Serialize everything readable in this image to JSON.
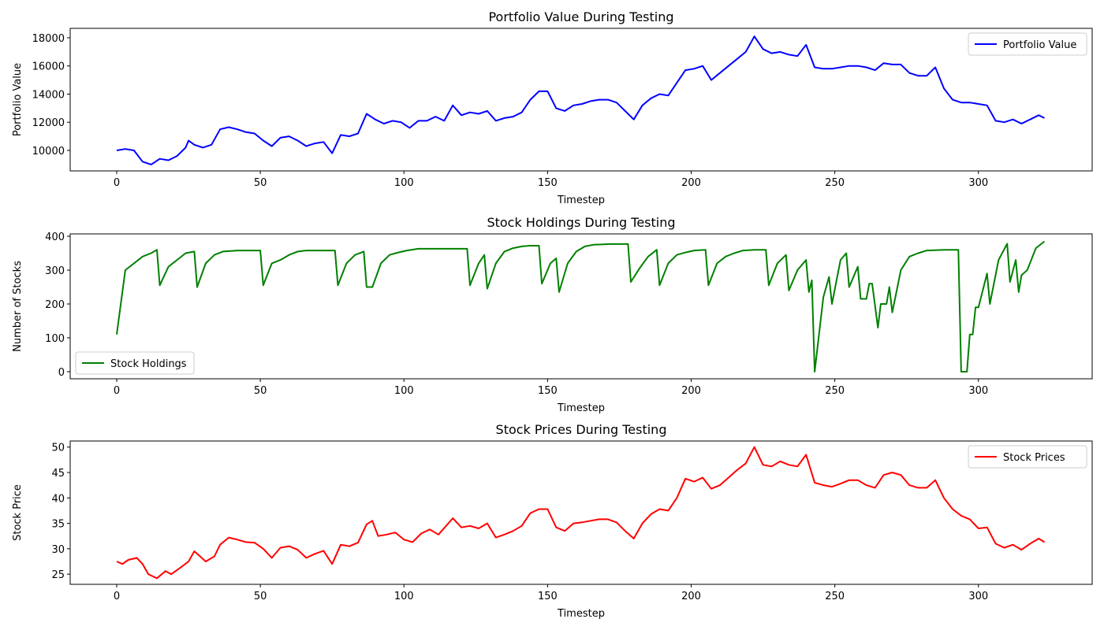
{
  "chart_data": [
    {
      "type": "line",
      "title": "Portfolio Value During Testing",
      "x_label": "Timestep",
      "y_label": "Portfolio Value",
      "xlim": [
        -16.2,
        339.6
      ],
      "xticks": [
        0,
        50,
        100,
        150,
        200,
        250,
        300
      ],
      "ylim": [
        8545,
        18670
      ],
      "yticks": [
        10000,
        12000,
        14000,
        16000,
        18000
      ],
      "legend": "upper right",
      "x": [
        0,
        3,
        6,
        9,
        12,
        15,
        18,
        21,
        24,
        25,
        27,
        30,
        33,
        36,
        39,
        42,
        45,
        48,
        51,
        54,
        57,
        60,
        63,
        66,
        69,
        72,
        75,
        78,
        81,
        84,
        87,
        90,
        93,
        96,
        99,
        102,
        105,
        108,
        111,
        114,
        117,
        120,
        123,
        126,
        129,
        132,
        135,
        138,
        141,
        144,
        147,
        150,
        153,
        156,
        159,
        162,
        165,
        168,
        171,
        174,
        177,
        180,
        183,
        186,
        189,
        192,
        195,
        198,
        201,
        204,
        207,
        210,
        213,
        216,
        219,
        222,
        225,
        228,
        231,
        234,
        237,
        240,
        243,
        246,
        249,
        252,
        255,
        258,
        261,
        264,
        267,
        270,
        273,
        276,
        279,
        282,
        285,
        288,
        291,
        294,
        297,
        300,
        303,
        306,
        309,
        312,
        315,
        318,
        321,
        323
      ],
      "series": [
        {
          "name": "Portfolio Value",
          "color": "#0000ff",
          "values": [
            10000,
            10100,
            10000,
            9200,
            9000,
            9400,
            9300,
            9600,
            10200,
            10700,
            10400,
            10200,
            10400,
            11500,
            11650,
            11500,
            11300,
            11200,
            10700,
            10300,
            10900,
            11000,
            10700,
            10300,
            10500,
            10600,
            9800,
            11100,
            11000,
            11200,
            12600,
            12200,
            11900,
            12100,
            12000,
            11600,
            12100,
            12100,
            12400,
            12100,
            13200,
            12500,
            12700,
            12600,
            12800,
            12100,
            12300,
            12400,
            12700,
            13600,
            14200,
            14200,
            13000,
            12800,
            13200,
            13300,
            13500,
            13600,
            13600,
            13400,
            12800,
            12200,
            13200,
            13700,
            14000,
            13900,
            14800,
            15700,
            15800,
            16000,
            15000,
            15500,
            16000,
            16500,
            17000,
            18100,
            17200,
            16900,
            17000,
            16800,
            16700,
            17500,
            15900,
            15800,
            15800,
            15900,
            16000,
            16000,
            15900,
            15700,
            16200,
            16100,
            16100,
            15500,
            15300,
            15300,
            15900,
            14400,
            13600,
            13400,
            13400,
            13300,
            13200,
            12100,
            12000,
            12200,
            11900,
            12200,
            12500,
            12300
          ]
        }
      ]
    },
    {
      "type": "line",
      "title": "Stock Holdings During Testing",
      "x_label": "Timestep",
      "y_label": "Number of Stocks",
      "xlim": [
        -16.2,
        339.6
      ],
      "xticks": [
        0,
        50,
        100,
        150,
        200,
        250,
        300
      ],
      "ylim": [
        -21,
        407
      ],
      "yticks": [
        0,
        100,
        200,
        300,
        400
      ],
      "legend": "lower left",
      "x": [
        0,
        3,
        6,
        9,
        12,
        14,
        15,
        18,
        21,
        24,
        27,
        28,
        31,
        34,
        37,
        42,
        48,
        50,
        51,
        54,
        57,
        60,
        63,
        66,
        72,
        76,
        77,
        80,
        83,
        86,
        87,
        89,
        92,
        95,
        98,
        101,
        105,
        111,
        117,
        122,
        123,
        126,
        128,
        129,
        132,
        135,
        138,
        141,
        144,
        147,
        148,
        151,
        153,
        154,
        157,
        160,
        163,
        166,
        172,
        178,
        179,
        182,
        185,
        188,
        189,
        192,
        195,
        198,
        201,
        205,
        206,
        209,
        212,
        215,
        218,
        222,
        226,
        227,
        230,
        233,
        234,
        237,
        240,
        241,
        242,
        243,
        246,
        248,
        249,
        252,
        254,
        255,
        258,
        259,
        261,
        262,
        263,
        265,
        266,
        268,
        269,
        270,
        273,
        276,
        279,
        282,
        288,
        293,
        294,
        296,
        297,
        298,
        299,
        300,
        303,
        304,
        307,
        310,
        311,
        313,
        314,
        315,
        317,
        320,
        323
      ],
      "series": [
        {
          "name": "Stock Holdings",
          "color": "#008000",
          "values": [
            110,
            300,
            320,
            340,
            350,
            360,
            255,
            310,
            330,
            350,
            355,
            250,
            320,
            345,
            355,
            358,
            358,
            358,
            255,
            320,
            330,
            345,
            355,
            358,
            358,
            358,
            255,
            320,
            345,
            355,
            250,
            250,
            320,
            345,
            352,
            358,
            363,
            363,
            363,
            363,
            255,
            320,
            345,
            245,
            320,
            355,
            365,
            370,
            372,
            372,
            260,
            320,
            335,
            235,
            320,
            355,
            370,
            375,
            377,
            377,
            265,
            305,
            340,
            360,
            255,
            320,
            345,
            352,
            358,
            360,
            255,
            320,
            340,
            350,
            358,
            360,
            360,
            255,
            320,
            345,
            240,
            300,
            330,
            235,
            270,
            0,
            220,
            280,
            200,
            330,
            350,
            250,
            310,
            215,
            215,
            260,
            260,
            130,
            200,
            200,
            250,
            175,
            300,
            340,
            350,
            358,
            360,
            360,
            0,
            0,
            110,
            110,
            190,
            190,
            290,
            200,
            330,
            378,
            265,
            330,
            235,
            285,
            300,
            365,
            385
          ]
        }
      ]
    },
    {
      "type": "line",
      "title": "Stock Prices During Testing",
      "x_label": "Timestep",
      "y_label": "Stock Price",
      "xlim": [
        -16.2,
        339.6
      ],
      "xticks": [
        0,
        50,
        100,
        150,
        200,
        250,
        300
      ],
      "ylim": [
        23,
        51.2
      ],
      "yticks": [
        25,
        30,
        35,
        40,
        45,
        50
      ],
      "legend": "upper right",
      "x": [
        0,
        2,
        4,
        7,
        9,
        11,
        14,
        17,
        19,
        22,
        25,
        27,
        31,
        34,
        36,
        39,
        42,
        45,
        48,
        51,
        54,
        57,
        60,
        63,
        66,
        69,
        72,
        75,
        78,
        81,
        84,
        87,
        89,
        91,
        94,
        97,
        100,
        103,
        106,
        109,
        112,
        117,
        120,
        123,
        126,
        129,
        132,
        135,
        138,
        141,
        144,
        147,
        150,
        153,
        156,
        159,
        162,
        165,
        168,
        171,
        174,
        177,
        180,
        183,
        186,
        189,
        192,
        195,
        198,
        201,
        204,
        207,
        210,
        213,
        216,
        219,
        222,
        225,
        228,
        231,
        234,
        237,
        240,
        243,
        246,
        249,
        252,
        255,
        258,
        261,
        264,
        267,
        270,
        273,
        276,
        279,
        282,
        285,
        288,
        291,
        294,
        297,
        300,
        303,
        306,
        309,
        312,
        315,
        318,
        321,
        323
      ],
      "series": [
        {
          "name": "Stock Prices",
          "color": "#ff0000",
          "values": [
            27.5,
            27.0,
            27.8,
            28.2,
            27.0,
            25.0,
            24.2,
            25.6,
            25.0,
            26.2,
            27.5,
            29.5,
            27.5,
            28.5,
            30.8,
            32.2,
            31.8,
            31.3,
            31.2,
            30.0,
            28.2,
            30.2,
            30.5,
            29.8,
            28.2,
            29.0,
            29.6,
            27.0,
            30.8,
            30.5,
            31.2,
            34.8,
            35.5,
            32.5,
            32.8,
            33.2,
            31.8,
            31.3,
            33.0,
            33.8,
            32.8,
            36.0,
            34.2,
            34.5,
            34.0,
            35.0,
            32.2,
            32.8,
            33.5,
            34.5,
            37.0,
            37.8,
            37.8,
            34.2,
            33.5,
            35.0,
            35.2,
            35.5,
            35.8,
            35.8,
            35.2,
            33.5,
            32.0,
            35.0,
            36.8,
            37.8,
            37.5,
            40.0,
            43.8,
            43.2,
            44.0,
            41.8,
            42.5,
            44.0,
            45.5,
            46.8,
            50.0,
            46.5,
            46.2,
            47.2,
            46.5,
            46.2,
            48.5,
            43.0,
            42.5,
            42.2,
            42.8,
            43.5,
            43.5,
            42.5,
            42.0,
            44.5,
            45.0,
            44.5,
            42.5,
            42.0,
            42.0,
            43.5,
            40.0,
            37.8,
            36.5,
            35.8,
            34.0,
            34.2,
            31.0,
            30.2,
            30.8,
            29.8,
            31.0,
            32.0,
            31.3
          ]
        }
      ]
    }
  ]
}
